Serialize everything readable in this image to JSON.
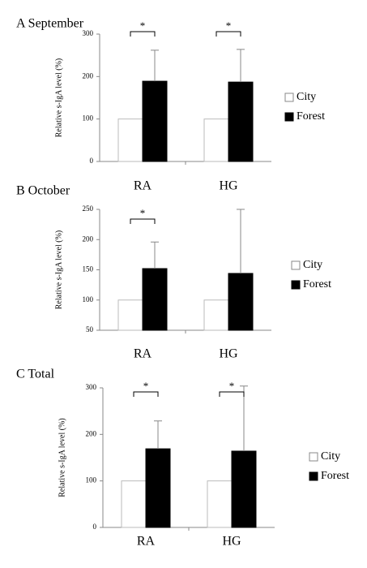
{
  "chart_data": [
    {
      "type": "bar",
      "title": "A September",
      "y_label": "Relative s-IgA level (%)",
      "categories": [
        "RA",
        "HG"
      ],
      "series": [
        {
          "name": "City",
          "color": "#ffffff",
          "values": [
            100,
            100
          ]
        },
        {
          "name": "Forest",
          "color": "#000000",
          "values": [
            189,
            187
          ],
          "errors": [
            73,
            77
          ]
        }
      ],
      "significance": [
        "*",
        "*"
      ],
      "ylim": [
        0,
        300
      ],
      "yticks": [
        0,
        100,
        200,
        300
      ]
    },
    {
      "type": "bar",
      "title": "B October",
      "y_label": "Relative s-IgA level (%)",
      "categories": [
        "RA",
        "HG"
      ],
      "series": [
        {
          "name": "City",
          "color": "#ffffff",
          "values": [
            100,
            100
          ]
        },
        {
          "name": "Forest",
          "color": "#000000",
          "values": [
            152,
            144
          ],
          "errors": [
            44,
            106
          ]
        }
      ],
      "significance": [
        "*",
        null
      ],
      "ylim": [
        50,
        250
      ],
      "yticks": [
        50,
        100,
        150,
        200,
        250
      ]
    },
    {
      "type": "bar",
      "title": "C Total",
      "y_label": "Relative s-IgA level (%)",
      "categories": [
        "RA",
        "HG"
      ],
      "series": [
        {
          "name": "City",
          "color": "#ffffff",
          "values": [
            100,
            100
          ]
        },
        {
          "name": "Forest",
          "color": "#000000",
          "values": [
            169,
            164
          ],
          "errors": [
            60,
            140
          ]
        }
      ],
      "significance": [
        "*",
        "*"
      ],
      "ylim": [
        0,
        300
      ],
      "yticks": [
        0,
        100,
        200,
        300
      ]
    }
  ]
}
